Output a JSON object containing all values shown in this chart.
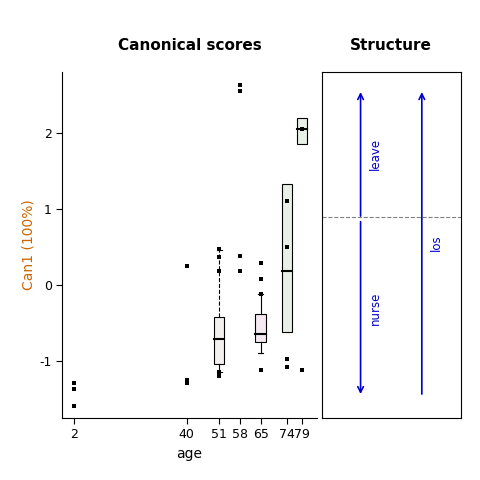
{
  "title_left": "Canonical scores",
  "title_right": "Structure",
  "ylabel": "Can1 (100%)",
  "xlabel": "age",
  "ylabel_color": "#cc6600",
  "x_tick_labels": [
    "2",
    "40",
    "51",
    "58",
    "65",
    "74",
    "79"
  ],
  "x_tick_positions": [
    2,
    40,
    51,
    58,
    65,
    74,
    79
  ],
  "ylim": [
    -1.75,
    2.8
  ],
  "xlim": [
    -2,
    84
  ],
  "boxplot_data": {
    "51": {
      "q1": -1.05,
      "median": -0.72,
      "q3": -0.42,
      "whisker_low": -1.15,
      "whisker_high": 0.45,
      "wh_dashed": true
    },
    "65": {
      "q1": -0.75,
      "median": -0.65,
      "q3": -0.38,
      "whisker_low": -0.9,
      "whisker_high": -0.12,
      "wh_dashed": false
    },
    "74": {
      "q1": -0.62,
      "median": 0.18,
      "q3": 1.32,
      "whisker_low": -0.62,
      "whisker_high": 1.32,
      "wh_dashed": false
    },
    "79": {
      "q1": 1.85,
      "median": 2.05,
      "q3": 2.2,
      "whisker_low": 1.85,
      "whisker_high": 2.2,
      "wh_dashed": false
    }
  },
  "box_colors": {
    "51": "#f5f0f0",
    "65": "#f5e8f0",
    "74": "#e8f0e8",
    "79": "#e8f0e8"
  },
  "scatter_points": {
    "2": [
      2,
      2,
      2
    ],
    "40": [
      40,
      40,
      40
    ],
    "51": [
      51,
      51,
      51,
      51,
      51,
      51
    ],
    "58": [
      58,
      58,
      58,
      58
    ],
    "65": [
      65,
      65,
      65,
      65
    ],
    "74": [
      74,
      74,
      74,
      74
    ],
    "79": [
      79,
      79
    ]
  },
  "scatter_y": {
    "2": [
      -1.6,
      -1.38,
      -1.3
    ],
    "40": [
      -1.3,
      -1.25,
      0.25
    ],
    "51": [
      -1.2,
      -1.18,
      -1.15,
      0.18,
      0.37,
      0.47
    ],
    "58": [
      0.18,
      0.38,
      2.55,
      2.63
    ],
    "65": [
      -1.12,
      0.08,
      0.28,
      -0.12
    ],
    "74": [
      -1.08,
      -0.98,
      0.5,
      1.1
    ],
    "79": [
      -1.12,
      2.05
    ]
  },
  "box_width": 3.5,
  "box_edgecolor": "#000000",
  "structure_dashed_y": 0.58,
  "arrow_color": "#0000cc",
  "leave_x": 0.28,
  "leave_y_start": 0.575,
  "leave_y_end": 0.95,
  "nurse_x": 0.28,
  "nurse_y_start": 0.575,
  "nurse_y_end": 0.06,
  "los_x": 0.72,
  "los_y_start": 0.06,
  "los_y_end": 0.95
}
